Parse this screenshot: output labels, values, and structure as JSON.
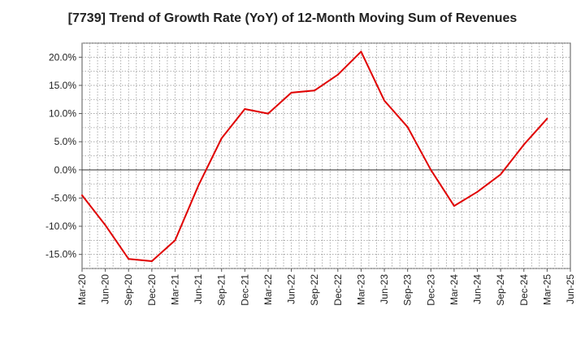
{
  "chart_data": {
    "type": "line",
    "title": "[7739]  Trend of Growth Rate (YoY) of 12-Month Moving Sum of Revenues",
    "xlabel": "",
    "ylabel": "",
    "categories": [
      "Mar-20",
      "Jun-20",
      "Sep-20",
      "Dec-20",
      "Mar-21",
      "Jun-21",
      "Sep-21",
      "Dec-21",
      "Mar-22",
      "Jun-22",
      "Sep-22",
      "Dec-22",
      "Mar-23",
      "Jun-23",
      "Sep-23",
      "Dec-23",
      "Mar-24",
      "Jun-24",
      "Sep-24",
      "Dec-24",
      "Mar-25",
      "Jun-25"
    ],
    "series": [
      {
        "values": [
          -4.5,
          -9.8,
          -15.8,
          -16.2,
          -12.5,
          -2.8,
          5.6,
          10.8,
          10.0,
          13.7,
          14.1,
          16.9,
          21.0,
          12.3,
          7.6,
          0.0,
          -6.4,
          -3.9,
          -0.8,
          4.5,
          9.1,
          null
        ]
      }
    ],
    "yticks": [
      "20.0%",
      "15.0%",
      "10.0%",
      "5.0%",
      "0.0%",
      "-5.0%",
      "-10.0%",
      "-15.0%"
    ],
    "ytick_values": [
      20,
      15,
      10,
      5,
      0,
      -5,
      -10,
      -15
    ],
    "ylim": [
      -17.5,
      22.5
    ],
    "grid": true,
    "line_color": "#e00000"
  }
}
